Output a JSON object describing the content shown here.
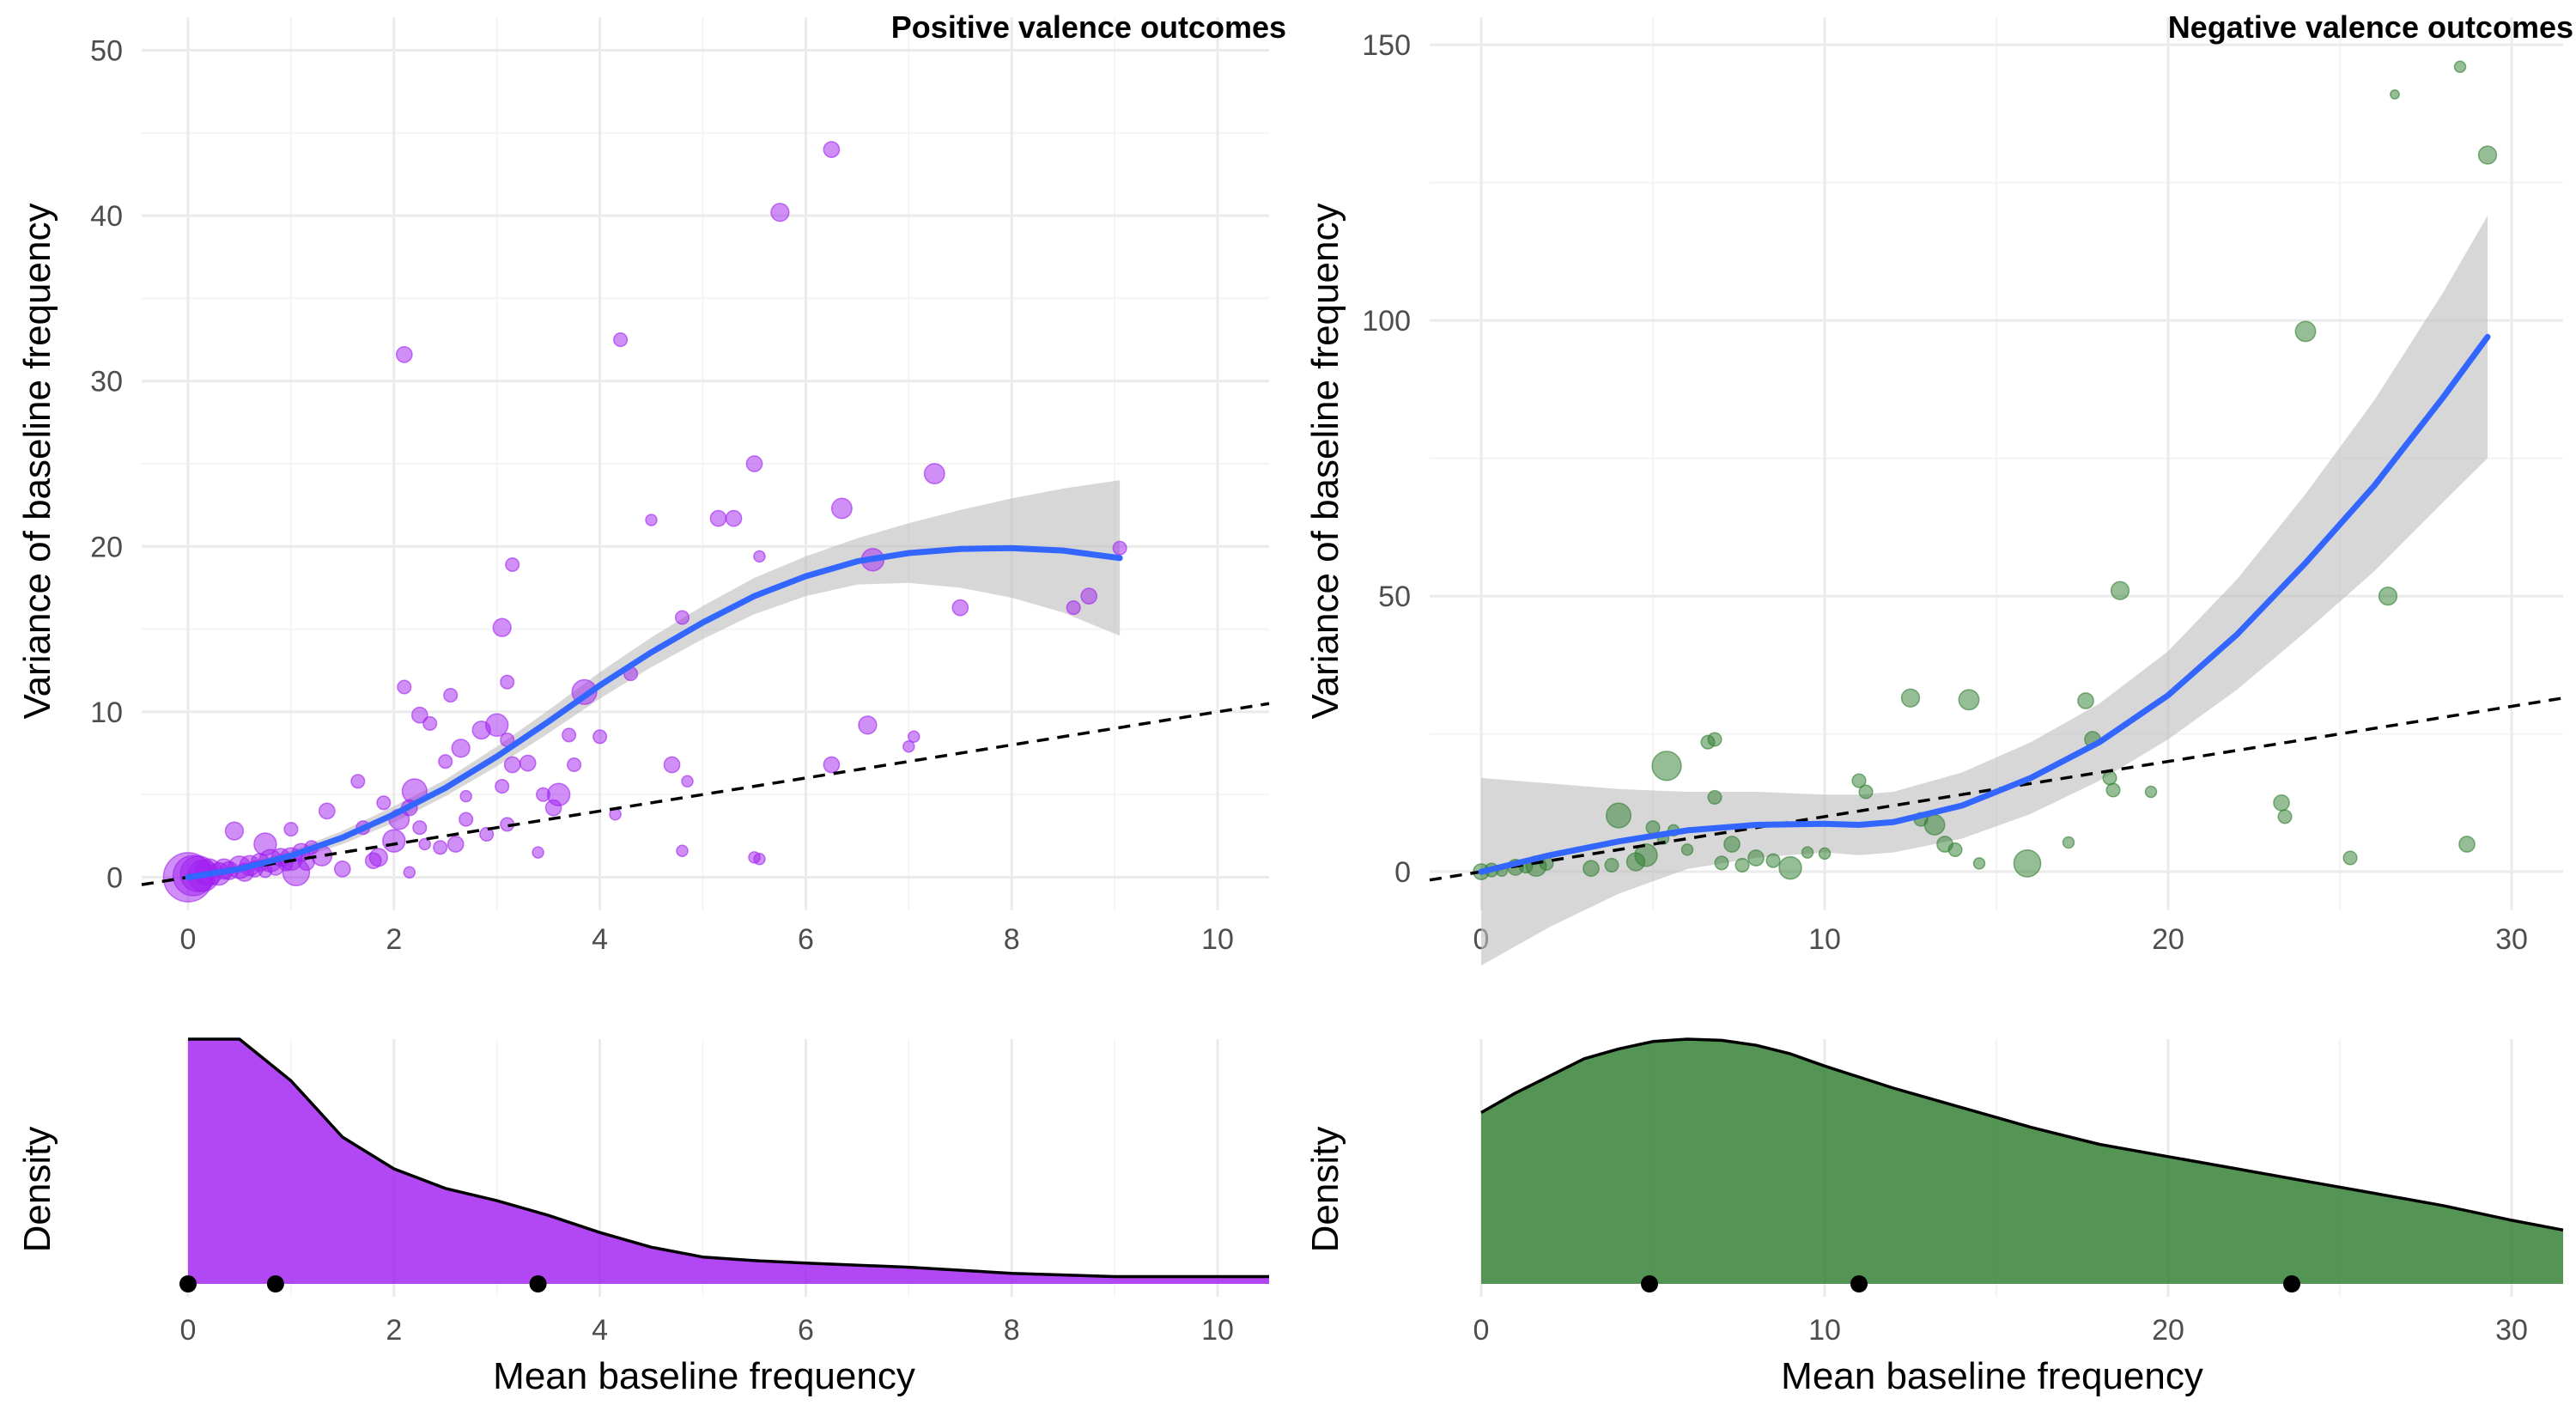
{
  "chart_data": [
    {
      "type": "scatter",
      "title": "Positive valence outcomes",
      "xlabel": "",
      "ylabel": "Variance of baseline frequency",
      "xlim": [
        -0.45,
        10.5
      ],
      "ylim": [
        -2,
        52
      ],
      "xticks": [
        "0",
        "2",
        "4",
        "6",
        "8",
        "10"
      ],
      "yticks": [
        "0",
        "10",
        "20",
        "30",
        "40",
        "50"
      ],
      "grid": true,
      "point_color": "#a020f0",
      "smooth_color": "#3366ff",
      "band_color": "#bebebe",
      "points": [
        [
          0,
          0,
          2.2
        ],
        [
          0.05,
          0.1,
          1.8
        ],
        [
          0.1,
          0.2,
          1.6
        ],
        [
          0.15,
          0.1,
          1.4
        ],
        [
          0.2,
          0.3,
          1.2
        ],
        [
          0.3,
          0.2,
          1.0
        ],
        [
          0.35,
          0.5,
          0.9
        ],
        [
          0.4,
          0.4,
          0.8
        ],
        [
          0.5,
          0.6,
          1.0
        ],
        [
          0.55,
          0.3,
          0.8
        ],
        [
          0.6,
          0.7,
          0.9
        ],
        [
          0.65,
          0.5,
          0.7
        ],
        [
          0.7,
          0.9,
          0.8
        ],
        [
          0.75,
          0.4,
          0.6
        ],
        [
          0.8,
          1.0,
          1.0
        ],
        [
          0.85,
          0.6,
          0.7
        ],
        [
          0.9,
          1.2,
          0.8
        ],
        [
          0.95,
          0.8,
          0.6
        ],
        [
          1.0,
          1.1,
          1.0
        ],
        [
          1.05,
          0.3,
          1.2
        ],
        [
          1.1,
          1.5,
          0.8
        ],
        [
          1.15,
          0.9,
          0.7
        ],
        [
          1.2,
          1.8,
          0.6
        ],
        [
          1.3,
          1.3,
          0.9
        ],
        [
          1.35,
          4.0,
          0.7
        ],
        [
          1.5,
          0.5,
          0.7
        ],
        [
          0.45,
          2.8,
          0.8
        ],
        [
          0.75,
          2.0,
          1.0
        ],
        [
          1.0,
          2.9,
          0.6
        ],
        [
          1.7,
          3.0,
          0.6
        ],
        [
          1.65,
          5.8,
          0.6
        ],
        [
          1.8,
          1.0,
          0.7
        ],
        [
          1.85,
          1.2,
          0.8
        ],
        [
          1.9,
          4.5,
          0.6
        ],
        [
          2.0,
          2.2,
          1.0
        ],
        [
          2.05,
          3.5,
          0.9
        ],
        [
          2.15,
          4.2,
          0.7
        ],
        [
          2.2,
          5.2,
          1.1
        ],
        [
          2.25,
          3.0,
          0.6
        ],
        [
          2.3,
          2.0,
          0.5
        ],
        [
          2.25,
          9.8,
          0.7
        ],
        [
          2.35,
          9.3,
          0.6
        ],
        [
          2.1,
          11.5,
          0.6
        ],
        [
          2.5,
          7.0,
          0.6
        ],
        [
          2.65,
          7.8,
          0.8
        ],
        [
          2.85,
          8.9,
          0.8
        ],
        [
          2.55,
          11.0,
          0.6
        ],
        [
          2.7,
          4.9,
          0.5
        ],
        [
          2.7,
          3.5,
          0.6
        ],
        [
          2.45,
          1.8,
          0.6
        ],
        [
          2.6,
          2.0,
          0.7
        ],
        [
          2.15,
          0.3,
          0.5
        ],
        [
          2.9,
          2.6,
          0.6
        ],
        [
          3.0,
          9.2,
          1.0
        ],
        [
          3.05,
          5.5,
          0.6
        ],
        [
          3.1,
          8.3,
          0.6
        ],
        [
          3.15,
          6.8,
          0.7
        ],
        [
          3.3,
          6.9,
          0.7
        ],
        [
          3.45,
          5.0,
          0.6
        ],
        [
          3.55,
          4.2,
          0.7
        ],
        [
          3.6,
          5.0,
          1.0
        ],
        [
          3.4,
          1.5,
          0.5
        ],
        [
          3.1,
          3.2,
          0.6
        ],
        [
          3.05,
          15.1,
          0.8
        ],
        [
          3.1,
          11.8,
          0.6
        ],
        [
          3.15,
          18.9,
          0.6
        ],
        [
          3.7,
          8.6,
          0.6
        ],
        [
          3.75,
          6.8,
          0.6
        ],
        [
          3.85,
          11.2,
          1.1
        ],
        [
          4.0,
          8.5,
          0.6
        ],
        [
          4.15,
          3.8,
          0.5
        ],
        [
          4.3,
          12.3,
          0.6
        ],
        [
          4.5,
          21.6,
          0.5
        ],
        [
          4.7,
          6.8,
          0.7
        ],
        [
          4.8,
          1.6,
          0.5
        ],
        [
          4.8,
          15.7,
          0.6
        ],
        [
          4.85,
          5.8,
          0.5
        ],
        [
          5.15,
          21.7,
          0.7
        ],
        [
          5.3,
          21.7,
          0.7
        ],
        [
          5.5,
          25.0,
          0.7
        ],
        [
          5.55,
          19.4,
          0.5
        ],
        [
          5.5,
          1.2,
          0.5
        ],
        [
          5.55,
          1.1,
          0.5
        ],
        [
          4.2,
          32.5,
          0.6
        ],
        [
          2.1,
          31.6,
          0.7
        ],
        [
          5.75,
          40.2,
          0.8
        ],
        [
          6.25,
          44.0,
          0.7
        ],
        [
          6.35,
          22.3,
          0.9
        ],
        [
          6.25,
          6.8,
          0.7
        ],
        [
          6.6,
          9.2,
          0.8
        ],
        [
          6.65,
          19.2,
          1.0
        ],
        [
          7.25,
          24.4,
          0.9
        ],
        [
          7.0,
          7.9,
          0.5
        ],
        [
          7.05,
          8.5,
          0.5
        ],
        [
          7.5,
          16.3,
          0.7
        ],
        [
          8.6,
          16.3,
          0.6
        ],
        [
          8.75,
          17.0,
          0.7
        ],
        [
          9.05,
          19.9,
          0.6
        ]
      ],
      "smooth": {
        "x": [
          0,
          0.5,
          1,
          1.5,
          2,
          2.5,
          3,
          3.5,
          4,
          4.5,
          5,
          5.5,
          6,
          6.5,
          7,
          7.5,
          8,
          8.5,
          9.05
        ],
        "y": [
          0.0,
          0.5,
          1.3,
          2.4,
          3.8,
          5.4,
          7.3,
          9.4,
          11.6,
          13.6,
          15.4,
          17.0,
          18.2,
          19.1,
          19.6,
          19.85,
          19.9,
          19.75,
          19.3
        ],
        "lower": [
          -0.2,
          0.25,
          1.0,
          2.0,
          3.3,
          4.9,
          6.7,
          8.7,
          10.8,
          12.7,
          14.4,
          15.9,
          17.0,
          17.7,
          17.8,
          17.5,
          16.9,
          16.0,
          14.6
        ],
        "upper": [
          0.2,
          0.75,
          1.6,
          2.8,
          4.3,
          5.9,
          7.9,
          10.1,
          12.4,
          14.5,
          16.4,
          18.1,
          19.4,
          20.5,
          21.4,
          22.2,
          22.9,
          23.5,
          24.0
        ]
      },
      "reference_line": {
        "style": "dashed",
        "x": [
          -0.45,
          10.5
        ],
        "y": [
          -0.45,
          10.5
        ]
      }
    },
    {
      "type": "area",
      "title": "",
      "xlabel": "Mean baseline frequency",
      "ylabel": "Density",
      "xlim": [
        -0.45,
        10.5
      ],
      "xticks": [
        "0",
        "2",
        "4",
        "6",
        "8",
        "10"
      ],
      "fill_color": "#a020f0",
      "x": [
        0,
        0.5,
        1,
        1.5,
        2,
        2.5,
        3,
        3.5,
        4,
        4.5,
        5,
        5.5,
        6,
        7,
        8,
        9,
        10.5
      ],
      "y": [
        1.0,
        1.0,
        0.83,
        0.6,
        0.47,
        0.39,
        0.34,
        0.28,
        0.21,
        0.15,
        0.11,
        0.095,
        0.085,
        0.068,
        0.043,
        0.03,
        0.03
      ],
      "markers": [
        0,
        0.85,
        3.4
      ]
    },
    {
      "type": "scatter",
      "title": "Negative valence outcomes",
      "xlabel": "",
      "ylabel": "Variance of baseline frequency",
      "xlim": [
        -1.5,
        31.5
      ],
      "ylim": [
        -7,
        155
      ],
      "xticks": [
        "0",
        "10",
        "20",
        "30"
      ],
      "yticks": [
        "0",
        "50",
        "100",
        "150"
      ],
      "grid": true,
      "point_color": "#2e7d2e",
      "smooth_color": "#3366ff",
      "band_color": "#bebebe",
      "points": [
        [
          0,
          0,
          0.7
        ],
        [
          0.3,
          0.3,
          0.6
        ],
        [
          0.6,
          0.2,
          0.5
        ],
        [
          1.0,
          0.8,
          0.7
        ],
        [
          1.3,
          1.0,
          0.6
        ],
        [
          1.6,
          1.0,
          0.9
        ],
        [
          1.9,
          1.5,
          0.6
        ],
        [
          3.2,
          0.6,
          0.7
        ],
        [
          3.8,
          1.2,
          0.6
        ],
        [
          4.0,
          10.2,
          1.1
        ],
        [
          4.5,
          1.8,
          0.8
        ],
        [
          4.8,
          3.0,
          1.0
        ],
        [
          5.0,
          8.0,
          0.6
        ],
        [
          5.3,
          6.0,
          0.5
        ],
        [
          5.4,
          19.2,
          1.3
        ],
        [
          5.6,
          7.5,
          0.5
        ],
        [
          6.0,
          4.0,
          0.5
        ],
        [
          6.6,
          23.5,
          0.6
        ],
        [
          6.8,
          24.0,
          0.6
        ],
        [
          6.8,
          13.5,
          0.6
        ],
        [
          7.0,
          1.6,
          0.6
        ],
        [
          7.3,
          5.0,
          0.7
        ],
        [
          7.6,
          1.2,
          0.6
        ],
        [
          8.0,
          2.5,
          0.7
        ],
        [
          8.5,
          2.0,
          0.6
        ],
        [
          9.0,
          0.7,
          1.0
        ],
        [
          9.5,
          3.5,
          0.5
        ],
        [
          10.0,
          3.3,
          0.5
        ],
        [
          11.0,
          16.5,
          0.6
        ],
        [
          11.2,
          14.5,
          0.6
        ],
        [
          12.5,
          31.5,
          0.8
        ],
        [
          12.8,
          9.5,
          0.6
        ],
        [
          13.2,
          8.5,
          0.9
        ],
        [
          13.5,
          5.0,
          0.7
        ],
        [
          13.8,
          4.0,
          0.6
        ],
        [
          14.2,
          31.2,
          0.9
        ],
        [
          14.5,
          1.5,
          0.5
        ],
        [
          15.9,
          1.5,
          1.2
        ],
        [
          17.1,
          5.3,
          0.5
        ],
        [
          17.6,
          31.0,
          0.7
        ],
        [
          17.8,
          24.0,
          0.7
        ],
        [
          18.3,
          17.0,
          0.6
        ],
        [
          18.4,
          14.8,
          0.6
        ],
        [
          18.6,
          51.0,
          0.8
        ],
        [
          19.5,
          14.5,
          0.5
        ],
        [
          23.3,
          12.5,
          0.7
        ],
        [
          23.4,
          10.0,
          0.6
        ],
        [
          24.0,
          98.0,
          0.9
        ],
        [
          25.3,
          2.5,
          0.6
        ],
        [
          26.4,
          50.0,
          0.8
        ],
        [
          26.6,
          141.0,
          0.4
        ],
        [
          28.5,
          146.0,
          0.5
        ],
        [
          28.7,
          5.0,
          0.7
        ],
        [
          29.3,
          130.0,
          0.8
        ]
      ],
      "smooth": {
        "x": [
          0,
          2,
          4,
          6,
          8,
          10,
          11,
          12,
          14,
          16,
          18,
          20,
          22,
          24,
          26,
          28,
          29.3
        ],
        "y": [
          0.0,
          3.0,
          5.5,
          7.5,
          8.5,
          8.7,
          8.5,
          9.0,
          12.0,
          17.0,
          23.5,
          32.0,
          43.0,
          56.0,
          70.0,
          86.0,
          97.0
        ],
        "lower": [
          -17.0,
          -10.0,
          -4.0,
          0.5,
          2.5,
          3.5,
          3.0,
          3.5,
          6.0,
          10.5,
          16.5,
          24.0,
          33.0,
          43.5,
          54.5,
          67.0,
          75.0
        ],
        "upper": [
          17.0,
          16.0,
          15.0,
          14.5,
          14.5,
          14.0,
          14.0,
          14.5,
          18.0,
          23.5,
          30.5,
          40.0,
          53.0,
          68.5,
          85.5,
          105.0,
          119.0
        ]
      },
      "reference_line": {
        "style": "dashed",
        "x": [
          -1.5,
          31.5
        ],
        "y": [
          -1.5,
          31.5
        ]
      }
    },
    {
      "type": "area",
      "title": "",
      "xlabel": "Mean baseline frequency",
      "ylabel": "Density",
      "xlim": [
        -1.5,
        31.5
      ],
      "xticks": [
        "0",
        "10",
        "20",
        "30"
      ],
      "fill_color": "#2e7d2e",
      "x": [
        0,
        1,
        2,
        3,
        4,
        5,
        6,
        7,
        8,
        9,
        10,
        12,
        14,
        16,
        18,
        20,
        22,
        24,
        26,
        28,
        30,
        31.5
      ],
      "y": [
        0.7,
        0.78,
        0.85,
        0.92,
        0.96,
        0.99,
        1.0,
        0.995,
        0.975,
        0.94,
        0.89,
        0.8,
        0.72,
        0.64,
        0.57,
        0.52,
        0.47,
        0.42,
        0.37,
        0.32,
        0.26,
        0.22
      ],
      "markers": [
        4.9,
        11.0,
        23.6
      ]
    }
  ]
}
